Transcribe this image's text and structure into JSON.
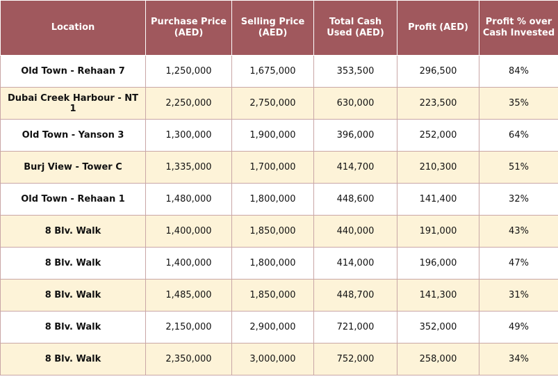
{
  "colors": {
    "header_bg": "#a0585d",
    "header_text": "#ffffff",
    "row_alt_bg": "#fdf3d8",
    "border": "#c9a6a6"
  },
  "table": {
    "headers": [
      {
        "lines": [
          "Location"
        ]
      },
      {
        "lines": [
          "Purchase Price",
          "(AED)"
        ]
      },
      {
        "lines": [
          "Selling Price",
          "(AED)"
        ]
      },
      {
        "lines": [
          "Total Cash",
          "Used (AED)"
        ]
      },
      {
        "lines": [
          "Profit (AED)"
        ]
      },
      {
        "lines": [
          "Profit % over",
          "Cash Invested"
        ]
      }
    ],
    "rows": [
      [
        "Old Town - Rehaan 7",
        "1,250,000",
        "1,675,000",
        "353,500",
        "296,500",
        "84%"
      ],
      [
        "Dubai Creek Harbour - NT 1",
        "2,250,000",
        "2,750,000",
        "630,000",
        "223,500",
        "35%"
      ],
      [
        "Old Town - Yanson 3",
        "1,300,000",
        "1,900,000",
        "396,000",
        "252,000",
        "64%"
      ],
      [
        "Burj View - Tower C",
        "1,335,000",
        "1,700,000",
        "414,700",
        "210,300",
        "51%"
      ],
      [
        "Old Town - Rehaan 1",
        "1,480,000",
        "1,800,000",
        "448,600",
        "141,400",
        "32%"
      ],
      [
        "8 Blv. Walk",
        "1,400,000",
        "1,850,000",
        "440,000",
        "191,000",
        "43%"
      ],
      [
        "8 Blv. Walk",
        "1,400,000",
        "1,800,000",
        "414,000",
        "196,000",
        "47%"
      ],
      [
        "8 Blv. Walk",
        "1,485,000",
        "1,850,000",
        "448,700",
        "141,300",
        "31%"
      ],
      [
        "8 Blv. Walk",
        "2,150,000",
        "2,900,000",
        "721,000",
        "352,000",
        "49%"
      ],
      [
        "8 Blv. Walk",
        "2,350,000",
        "3,000,000",
        "752,000",
        "258,000",
        "34%"
      ]
    ]
  }
}
